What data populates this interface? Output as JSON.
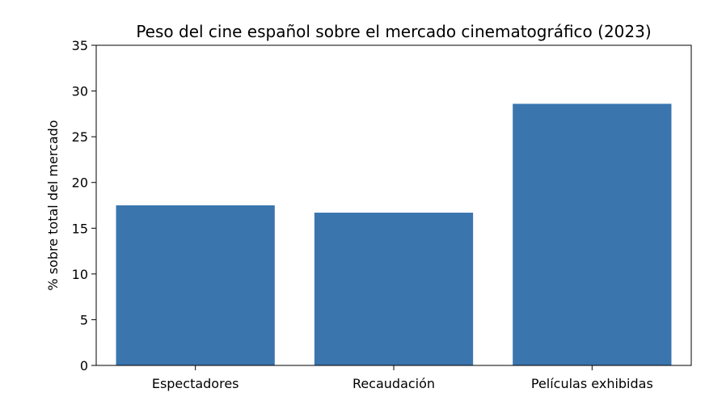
{
  "chart_data": {
    "type": "bar",
    "title": "Peso del cine español sobre el mercado cinematográfico (2023)",
    "xlabel": "",
    "ylabel": "% sobre total del mercado",
    "categories": [
      "Espectadores",
      "Recaudación",
      "Películas exhibidas"
    ],
    "values": [
      17.5,
      16.7,
      28.6
    ],
    "ylim": [
      0,
      35
    ],
    "yticks": [
      0,
      5,
      10,
      15,
      20,
      25,
      30,
      35
    ],
    "grid": false,
    "bar_color": "#3a75ae"
  }
}
